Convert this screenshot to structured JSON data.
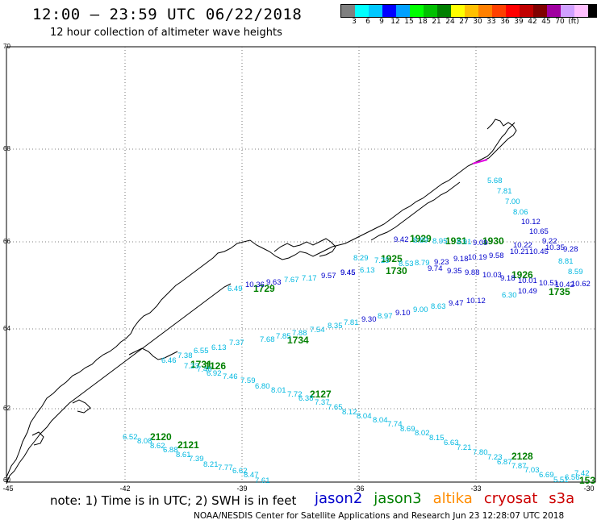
{
  "header": {
    "title": "12:00 — 23:59 UTC 06/22/2018",
    "subtitle": "12 hour collection of altimeter wave heights"
  },
  "legend": {
    "unit": "(ft)",
    "colors": [
      "#808080",
      "#00ffff",
      "#00c8ff",
      "#0000ff",
      "#00a0ff",
      "#00ff00",
      "#00c000",
      "#008000",
      "#ffff00",
      "#ffc000",
      "#ff8000",
      "#ff4000",
      "#ff0000",
      "#c00000",
      "#800000",
      "#a000a0",
      "#d0a0ff",
      "#ffc0ff",
      "#000000"
    ],
    "labels": [
      "3",
      "6",
      "9",
      "12",
      "15",
      "18",
      "21",
      "24",
      "27",
      "30",
      "33",
      "36",
      "39",
      "42",
      "45",
      "70"
    ]
  },
  "axes": {
    "lat_labels": [
      "70",
      "68",
      "66",
      "64",
      "62",
      "60"
    ],
    "lon_labels": [
      "-45",
      "-42",
      "-39",
      "-36",
      "-33",
      "-30"
    ]
  },
  "satellites": [
    {
      "name": "jason2",
      "color": "#0000cc"
    },
    {
      "name": "jason3",
      "color": "#008000"
    },
    {
      "name": "altika",
      "color": "#ff8c00"
    },
    {
      "name": "cryosat",
      "color": "#cc0000"
    },
    {
      "name": "s3a",
      "color": "#cc0000"
    }
  ],
  "footer": {
    "note": "note: 1) Time is in UTC; 2) SWH is in feet",
    "credit": "NOAA/NESDIS Center for Satellite Applications and Research     Jun 23 12:28:07 UTC 2018"
  },
  "track_times": [
    "1929",
    "1930",
    "1931",
    "1925",
    "1730",
    "1926",
    "1735",
    "1734",
    "1731",
    "1126",
    "2127",
    "2120",
    "2121",
    "2128",
    "153"
  ],
  "track_values": [
    "5.68",
    "7.81",
    "7.00",
    "8.06",
    "10.12",
    "10.65",
    "9.22",
    "8.81",
    "8.59",
    "9.42",
    "8.69",
    "8.95",
    "8.91",
    "9.09",
    "10.22",
    "10.35",
    "10.21",
    "10.45",
    "9.28",
    "10.19",
    "9.58",
    "9.18",
    "9.23",
    "8.79",
    "8.53",
    "8.29",
    "7.25",
    "6.13",
    "9.45",
    "9.74",
    "9.35",
    "9.88",
    "10.03",
    "9.18",
    "10.01",
    "10.51",
    "10.42",
    "10.62",
    "6.49",
    "10.36",
    "9.63",
    "7.67",
    "7.17",
    "9.57",
    "9.45",
    "6.30",
    "10.49",
    "10.12",
    "9.47",
    "8.63",
    "9.00",
    "9.10",
    "8.97",
    "9.30",
    "7.81",
    "8.35",
    "7.54",
    "7.88",
    "7.85",
    "7.68",
    "7.37",
    "6.13",
    "6.55",
    "7.38",
    "6.46",
    "7.23",
    "7.46",
    "6.92",
    "7.46",
    "7.59",
    "6.80",
    "8.01",
    "7.72",
    "6.38",
    "7.37",
    "7.65",
    "8.12",
    "8.04",
    "8.04",
    "7.74",
    "8.69",
    "8.02",
    "8.15",
    "6.63",
    "7.21",
    "7.80",
    "7.23",
    "6.87",
    "7.87",
    "7.03",
    "6.69",
    "5.51",
    "7.42",
    "6.56",
    "6.52",
    "8.08",
    "8.62",
    "6.88",
    "8.61",
    "7.39",
    "8.21",
    "7.77",
    "6.62",
    "8.47",
    "7.61"
  ]
}
